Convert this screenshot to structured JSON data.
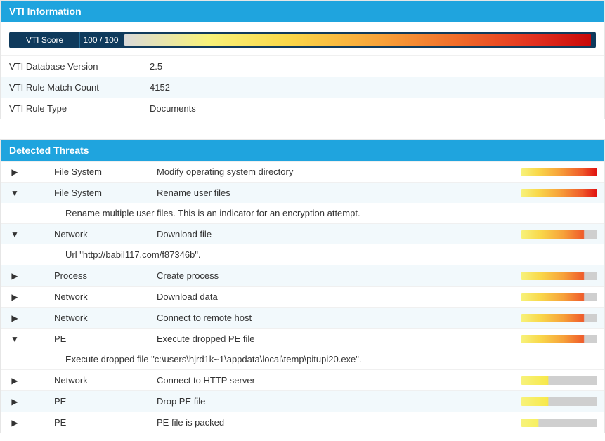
{
  "vti_panel": {
    "header": "VTI Information",
    "score_label": "VTI Score",
    "score_value": "100 / 100",
    "score_gradient": "linear-gradient(to right, #d9d9d9 0%, #f7f27a 18%, #f9d84a 35%, #f7a23a 55%, #ef6a2a 72%, #e13020 88%, #c80808 100%)",
    "rows": [
      {
        "label": "VTI Database Version",
        "value": "2.5",
        "alt": false
      },
      {
        "label": "VTI Rule Match Count",
        "value": "4152",
        "alt": true
      },
      {
        "label": "VTI Rule Type",
        "value": "Documents",
        "alt": false
      }
    ]
  },
  "threats_panel": {
    "header": "Detected Threats",
    "severity_gradients": {
      "very_high": "linear-gradient(to right, #f7f27a 0%, #f9d84a 22%, #f7a23a 50%, #ef5a2a 80%, #e01010 100%)",
      "high": "linear-gradient(to right, #f7f27a 0%, #f9d84a 25%, #f7a23a 55%, #ef5a2a 82%, #cfcfcf 83%, #cfcfcf 100%)",
      "med": "linear-gradient(to right, #f7f27a 0%, #f7e84a 35%, #cfcfcf 36%, #cfcfcf 100%)",
      "low": "linear-gradient(to right, #f7f27a 0%, #f7f060 22%, #cfcfcf 23%, #cfcfcf 100%)"
    },
    "items": [
      {
        "expanded": false,
        "category": "File System",
        "desc": "Modify operating system directory",
        "severity": "very_high",
        "alt": false
      },
      {
        "expanded": true,
        "category": "File System",
        "desc": "Rename user files",
        "severity": "very_high",
        "alt": true,
        "detail": "Rename multiple user files. This is an indicator for an encryption attempt."
      },
      {
        "expanded": true,
        "category": "Network",
        "desc": "Download file",
        "severity": "high",
        "alt": true,
        "detail": "Url \"http://babil117.com/f87346b\"."
      },
      {
        "expanded": false,
        "category": "Process",
        "desc": "Create process",
        "severity": "high",
        "alt": true
      },
      {
        "expanded": false,
        "category": "Network",
        "desc": "Download data",
        "severity": "high",
        "alt": false
      },
      {
        "expanded": false,
        "category": "Network",
        "desc": "Connect to remote host",
        "severity": "high",
        "alt": true
      },
      {
        "expanded": true,
        "category": "PE",
        "desc": "Execute dropped PE file",
        "severity": "high",
        "alt": false,
        "detail": "Execute dropped file \"c:\\users\\hjrd1k~1\\appdata\\local\\temp\\pitupi20.exe\"."
      },
      {
        "expanded": false,
        "category": "Network",
        "desc": "Connect to HTTP server",
        "severity": "med",
        "alt": false
      },
      {
        "expanded": false,
        "category": "PE",
        "desc": "Drop PE file",
        "severity": "med",
        "alt": true
      },
      {
        "expanded": false,
        "category": "PE",
        "desc": "PE file is packed",
        "severity": "low",
        "alt": false
      }
    ]
  }
}
